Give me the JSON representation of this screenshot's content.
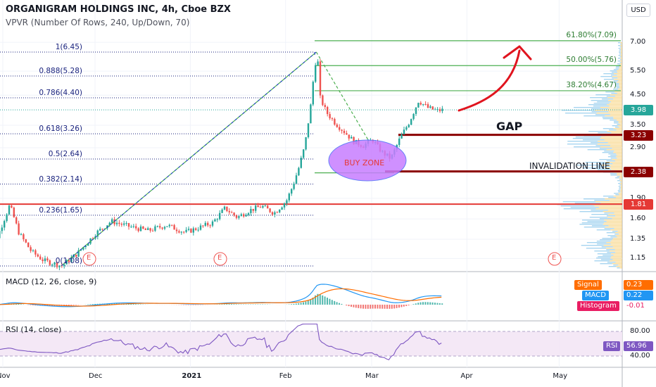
{
  "header": {
    "title": "ORGANIGRAM HOLDINGS INC, 4h, Cboe BZX",
    "indicator": "VPVR (Number Of Rows, 240, Up/Down, 70)",
    "currency": "USD"
  },
  "colors": {
    "up": "#26a69a",
    "down": "#ef5350",
    "fib": "#4caf50",
    "fib_left": "#1a237e",
    "red_line": "#e53935",
    "dark_red": "#8b0000",
    "buy_zone": "#c77dff",
    "vp_up": "#5eb3e4",
    "vp_down": "#f5c453",
    "macd": "#2196f3",
    "signal": "#ff6d00",
    "rsi": "#7e57c2"
  },
  "chart_data": [
    {
      "type": "candlestick",
      "name": "main",
      "y_scale": "log",
      "y_ticks": [
        "7.00",
        "5.50",
        "4.50",
        "3.50",
        "2.90",
        "1.90",
        "1.60",
        "1.35",
        "1.15"
      ],
      "x_ticks": [
        "Nov",
        "Dec",
        "2021",
        "Feb",
        "Mar",
        "Apr",
        "May"
      ],
      "price_path": [
        {
          "x": "Oct 26",
          "y": 1.32
        },
        {
          "x": "Oct 30",
          "y": 1.38
        },
        {
          "x": "Nov 3",
          "y": 1.8
        },
        {
          "x": "Nov 6",
          "y": 1.42
        },
        {
          "x": "Nov 10",
          "y": 1.22
        },
        {
          "x": "Nov 14",
          "y": 1.13
        },
        {
          "x": "Nov 20",
          "y": 1.08
        },
        {
          "x": "Nov 25",
          "y": 1.2
        },
        {
          "x": "Dec 1",
          "y": 1.42
        },
        {
          "x": "Dec 6",
          "y": 1.57
        },
        {
          "x": "Dec 12",
          "y": 1.5
        },
        {
          "x": "Dec 18",
          "y": 1.45
        },
        {
          "x": "Dec 24",
          "y": 1.52
        },
        {
          "x": "Dec 30",
          "y": 1.43
        },
        {
          "x": "Jan 3",
          "y": 1.48
        },
        {
          "x": "Jan 8",
          "y": 1.55
        },
        {
          "x": "Jan 12",
          "y": 1.75
        },
        {
          "x": "Jan 16",
          "y": 1.62
        },
        {
          "x": "Jan 20",
          "y": 1.72
        },
        {
          "x": "Jan 24",
          "y": 1.78
        },
        {
          "x": "Jan 28",
          "y": 1.68
        },
        {
          "x": "Feb 1",
          "y": 1.86
        },
        {
          "x": "Feb 3",
          "y": 2.1
        },
        {
          "x": "Feb 5",
          "y": 2.45
        },
        {
          "x": "Feb 7",
          "y": 2.95
        },
        {
          "x": "Feb 9",
          "y": 4.2
        },
        {
          "x": "Feb 10",
          "y": 5.5
        },
        {
          "x": "Feb 11",
          "y": 6.45
        },
        {
          "x": "Feb 12",
          "y": 4.4
        },
        {
          "x": "Feb 14",
          "y": 3.9
        },
        {
          "x": "Feb 17",
          "y": 3.55
        },
        {
          "x": "Feb 20",
          "y": 3.3
        },
        {
          "x": "Feb 23",
          "y": 3.05
        },
        {
          "x": "Feb 26",
          "y": 2.95
        },
        {
          "x": "Mar 1",
          "y": 3.1
        },
        {
          "x": "Mar 4",
          "y": 2.8
        },
        {
          "x": "Mar 7",
          "y": 2.65
        },
        {
          "x": "Mar 10",
          "y": 3.15
        },
        {
          "x": "Mar 13",
          "y": 3.6
        },
        {
          "x": "Mar 16",
          "y": 4.3
        },
        {
          "x": "Mar 19",
          "y": 4.05
        },
        {
          "x": "Mar 22",
          "y": 3.95
        },
        {
          "x": "Mar 24",
          "y": 3.98
        }
      ],
      "fibonacci": [
        {
          "label": "1(6.45)",
          "price": 6.45
        },
        {
          "label": "0.888(5.28)",
          "price": 5.28
        },
        {
          "label": "0.786(4.40)",
          "price": 4.4
        },
        {
          "label": "0.618(3.26)",
          "price": 3.26
        },
        {
          "label": "0.5(2.64)",
          "price": 2.64
        },
        {
          "label": "0.382(2.14)",
          "price": 2.14
        },
        {
          "label": "0.236(1.65)",
          "price": 1.65
        },
        {
          "label": "0(1.08)",
          "price": 1.08
        }
      ],
      "fib_extension": [
        {
          "label": "61.80%(7.09)",
          "price": 7.09
        },
        {
          "label": "50.00%(5.76)",
          "price": 5.76
        },
        {
          "label": "38.20%(4.67)",
          "price": 4.67
        }
      ],
      "price_badges": [
        {
          "label": "3.98",
          "price": 3.98,
          "color": "#26a69a"
        },
        {
          "label": "3.23",
          "price": 3.23,
          "color": "#8b0000"
        },
        {
          "label": "2.38",
          "price": 2.38,
          "color": "#8b0000"
        },
        {
          "label": "1.81",
          "price": 1.81,
          "color": "#e53935"
        }
      ],
      "horizontal_lines": [
        {
          "name": "support-line",
          "price": 1.81,
          "color": "#e53935"
        },
        {
          "name": "gap-line",
          "price": 3.23,
          "color": "#8b0000"
        },
        {
          "name": "invalidation-line",
          "price": 2.38,
          "color": "#8b0000"
        }
      ],
      "annotations": {
        "gap": "GAP",
        "invalidation": "INVALIDATION LINE",
        "buy_zone": "BUY ZONE",
        "earnings": "E"
      }
    },
    {
      "type": "line",
      "name": "macd",
      "title": "MACD (12, 26, close, 9)",
      "legend": [
        {
          "name": "Signal",
          "value": "0.23",
          "color": "#ff6d00"
        },
        {
          "name": "MACD",
          "value": "0.22",
          "color": "#2196f3"
        },
        {
          "name": "Histogram",
          "value": "-0.01",
          "color": "#e91e63"
        }
      ]
    },
    {
      "type": "line",
      "name": "rsi",
      "title": "RSI (14, close)",
      "levels": [
        "80.00",
        "40.00"
      ],
      "ylim": [
        20,
        100
      ],
      "legend": [
        {
          "name": "RSI",
          "value": "56.96",
          "color": "#7e57c2"
        }
      ]
    }
  ]
}
